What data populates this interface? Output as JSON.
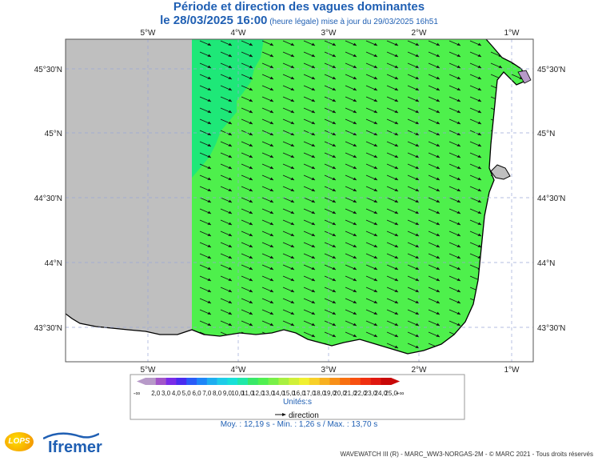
{
  "title": {
    "line1": "Période et direction des vagues dominantes",
    "date": "le 28/03/2025 16:00",
    "update": "(heure légale) mise à jour du 29/03/2025 16h51"
  },
  "axes": {
    "lon_labels": [
      "5°W",
      "4°W",
      "3°W",
      "2°W",
      "1°W"
    ],
    "lat_labels": [
      "45°30'N",
      "45°N",
      "44°30'N",
      "44°N",
      "43°30'N"
    ]
  },
  "legend": {
    "labels": [
      "-∞",
      "2,0",
      "3,0",
      "4,0",
      "5,0",
      "6,0",
      "7,0",
      "8,0",
      "9,0",
      "10,0",
      "11,0",
      "12,0",
      "13,0",
      "14,0",
      "15,0",
      "16,0",
      "17,0",
      "18,0",
      "19,0",
      "20,0",
      "21,0",
      "22,0",
      "23,0",
      "24,0",
      "25,0",
      "+∞"
    ],
    "colors": [
      "#b79ac8",
      "#a256c8",
      "#7a2ce8",
      "#4a2cf0",
      "#2a5cf8",
      "#1e86f8",
      "#1eaef0",
      "#1ecce8",
      "#18e0d8",
      "#20e8a8",
      "#38e868",
      "#50f050",
      "#78f048",
      "#a8f040",
      "#d0f038",
      "#f0f030",
      "#f8d028",
      "#f8b020",
      "#f89018",
      "#f87010",
      "#f85010",
      "#f03010",
      "#e01810",
      "#c80808"
    ],
    "units": "Unités:s",
    "direction_label": "direction"
  },
  "stats": "Moy. : 12,19 s   -   Min. : 1,26 s / Max. : 13,70 s",
  "footer": "WAVEWATCH III (R) - MARC_WW3-NORGAS-2M - © MARC 2021 - Tous droits réservés",
  "logos": {
    "lops": "LOPS",
    "ifremer": "Ifremer"
  },
  "colors": {
    "sea_main": "#4ef04c",
    "sea_darker": "#1ee878",
    "land": "#ffffff",
    "nodata": "#bfbfbf",
    "title": "#1f5fb3"
  }
}
